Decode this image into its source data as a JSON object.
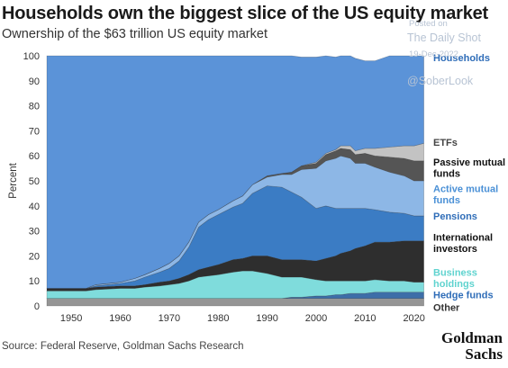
{
  "header": {
    "title": "Households own the biggest slice of the US equity market",
    "subtitle": "Ownership of the $63 trillion US equity market"
  },
  "watermark": {
    "line1": "Posted on",
    "line2": "The Daily Shot",
    "line3": "19-Dec-2022",
    "line4": "@SoberLook"
  },
  "footer": {
    "source": "Source: Federal Reserve, Goldman Sachs Research",
    "brand": "Goldman Sachs"
  },
  "chart_data": {
    "type": "area",
    "stacked": true,
    "ylabel": "Percent",
    "xlabel": "",
    "xlim": [
      1945,
      2023
    ],
    "ylim": [
      0,
      100
    ],
    "xticks": [
      1950,
      1960,
      1970,
      1980,
      1990,
      2000,
      2010,
      2020
    ],
    "yticks": [
      0,
      10,
      20,
      30,
      40,
      50,
      60,
      70,
      80,
      90,
      100
    ],
    "grid": false,
    "legend": "direct labels at right",
    "x": [
      1945,
      1950,
      1953,
      1955,
      1960,
      1963,
      1965,
      1968,
      1970,
      1972,
      1974,
      1976,
      1978,
      1980,
      1983,
      1985,
      1987,
      1990,
      1993,
      1995,
      1997,
      2000,
      2002,
      2004,
      2005,
      2007,
      2008,
      2010,
      2012,
      2015,
      2018,
      2020,
      2022
    ],
    "series": [
      {
        "name": "Other",
        "color": "#959595",
        "values": [
          3,
          3,
          3,
          3,
          3,
          3,
          3,
          3,
          3,
          3,
          3,
          3,
          3,
          3,
          3,
          3,
          3,
          3,
          3,
          3,
          3,
          3,
          3,
          3,
          3,
          3,
          3,
          3,
          3,
          3,
          3,
          3,
          3
        ]
      },
      {
        "name": "Hedge funds",
        "color": "#3d6ea8",
        "values": [
          0,
          0,
          0,
          0,
          0,
          0,
          0,
          0,
          0,
          0,
          0,
          0,
          0,
          0,
          0,
          0,
          0,
          0,
          0,
          0.5,
          0.5,
          1,
          1,
          1.5,
          1.5,
          2,
          2,
          2,
          2.5,
          2.5,
          2.5,
          2.5,
          2.5
        ]
      },
      {
        "name": "Business holdings",
        "color": "#7fdcdc",
        "values": [
          3,
          3,
          3,
          3.5,
          4,
          4,
          4.5,
          5,
          5.5,
          6,
          7,
          8.5,
          9,
          9.5,
          10.5,
          11,
          11,
          10,
          8.5,
          8,
          8,
          6.5,
          6,
          5.5,
          5.5,
          5,
          5,
          5,
          5,
          4.5,
          4.5,
          4,
          4
        ]
      },
      {
        "name": "International investors",
        "color": "#2e2e2e",
        "values": [
          1,
          1,
          1,
          1,
          1,
          1,
          1,
          1.5,
          1.5,
          2,
          2.5,
          3,
          3.5,
          4,
          5,
          5,
          6,
          7,
          7,
          7,
          7,
          7.5,
          9,
          10,
          11,
          12,
          13,
          14,
          15,
          15.5,
          16,
          16.5,
          16.5
        ]
      },
      {
        "name": "Pensions",
        "color": "#3b7cc4",
        "values": [
          0,
          0,
          0,
          0.5,
          1,
          2,
          3,
          4,
          5,
          7,
          11,
          17,
          19,
          20,
          21,
          22,
          25,
          28,
          29,
          27,
          25,
          21,
          21,
          19,
          18,
          17,
          16,
          15,
          13,
          12,
          11,
          10,
          10
        ]
      },
      {
        "name": "Active mutual funds",
        "color": "#8db7e6",
        "values": [
          0,
          0,
          0,
          0.5,
          0.5,
          1,
          1,
          1.5,
          2,
          2,
          2,
          2,
          2,
          2,
          2.5,
          3,
          3.5,
          3.5,
          5,
          7,
          11,
          16,
          18,
          20,
          21,
          20,
          18,
          18,
          17,
          16,
          15,
          14,
          14
        ]
      },
      {
        "name": "Passive mutual funds",
        "color": "#555555",
        "values": [
          0,
          0,
          0,
          0,
          0,
          0,
          0,
          0,
          0,
          0,
          0,
          0,
          0,
          0,
          0,
          0,
          0,
          0.5,
          0.5,
          1,
          1.5,
          2,
          2.5,
          3,
          3,
          3.5,
          3.5,
          4,
          4.5,
          6,
          7,
          8,
          8
        ]
      },
      {
        "name": "ETFs",
        "color": "#c3c3c3",
        "values": [
          0,
          0,
          0,
          0,
          0,
          0,
          0,
          0,
          0,
          0,
          0,
          0,
          0,
          0,
          0,
          0,
          0,
          0,
          0,
          0,
          0,
          0.5,
          0.5,
          0.5,
          1,
          1.5,
          1.5,
          2,
          3,
          4,
          5,
          6,
          7
        ]
      },
      {
        "name": "Households",
        "color": "#5b93d8",
        "values": [
          93,
          93,
          93,
          91.5,
          90.5,
          89,
          87.5,
          85,
          83,
          80,
          74.5,
          66.5,
          63.5,
          61.5,
          58,
          56,
          51.5,
          48,
          47,
          46.5,
          43.5,
          42,
          39,
          37,
          36,
          36,
          37,
          35,
          35,
          36.5,
          36,
          36,
          35
        ]
      }
    ],
    "labels": [
      {
        "text": "Households",
        "color": "#2f6db8",
        "y": 99.3
      },
      {
        "text": "ETFs",
        "color": "#444444",
        "y": 65.5
      },
      {
        "text": "Passive mutual",
        "color": "#111111",
        "y": 57.5
      },
      {
        "text": "funds",
        "color": "#111111",
        "y": 53
      },
      {
        "text": "Active mutual",
        "color": "#4a90d6",
        "y": 47
      },
      {
        "text": "funds",
        "color": "#4a90d6",
        "y": 42.5
      },
      {
        "text": "Pensions",
        "color": "#2f6db8",
        "y": 36
      },
      {
        "text": "International",
        "color": "#111111",
        "y": 27.5
      },
      {
        "text": "investors",
        "color": "#111111",
        "y": 23
      },
      {
        "text": "Business",
        "color": "#5fd3cf",
        "y": 13.5
      },
      {
        "text": "holdings",
        "color": "#5fd3cf",
        "y": 9
      },
      {
        "text": "Hedge funds",
        "color": "#2f6db8",
        "y": 4.5
      },
      {
        "text": "Other",
        "color": "#333333",
        "y": -0.5
      }
    ]
  }
}
